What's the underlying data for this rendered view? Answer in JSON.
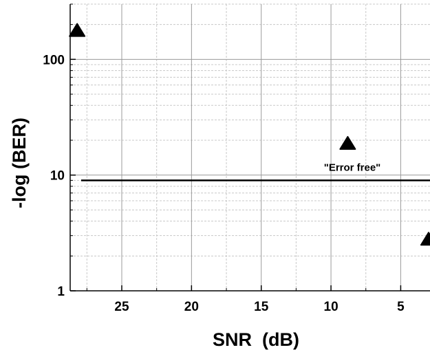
{
  "chart_data": {
    "type": "scatter",
    "title": "",
    "xlabel": "SNR  (dB)",
    "ylabel": "-log (BER)",
    "x_reversed": true,
    "xlim": [
      28.7,
      2.9
    ],
    "xticks": [
      25,
      20,
      15,
      10,
      5
    ],
    "xtick_labels": [
      "25",
      "20",
      "15",
      "10",
      "5"
    ],
    "y_scale": "log",
    "ylim": [
      1,
      300
    ],
    "yticks": [
      1,
      10,
      100
    ],
    "ytick_labels": [
      "1",
      "10",
      "100"
    ],
    "grid": true,
    "marker": "triangle",
    "series": [
      {
        "x": [
          28.2,
          8.8,
          3.0
        ],
        "y": [
          175,
          18.5,
          2.75
        ]
      }
    ],
    "reference_line": {
      "y": 9,
      "label": "\"Error free\""
    },
    "colors": {
      "marker": "#000000",
      "grid": "#9a9a9a",
      "axis": "#000000",
      "reference_line": "#000000"
    }
  }
}
